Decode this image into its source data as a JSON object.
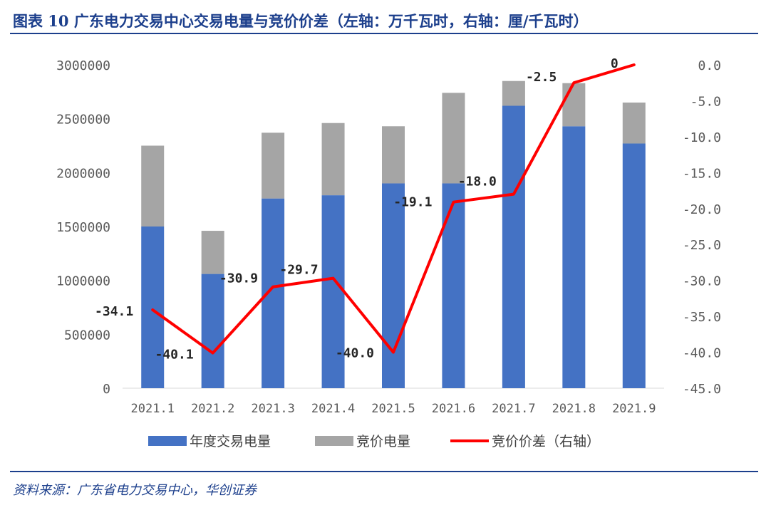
{
  "figure": {
    "title": "图表 10  广东电力交易中心交易电量与竞价价差（左轴：万千瓦时，右轴：厘/千瓦时）",
    "source": "资料来源：广东省电力交易中心，华创证券"
  },
  "colors": {
    "annual_bar": "#4472c4",
    "bid_bar": "#a5a5a5",
    "spread_line": "#ff0000",
    "heading": "#1c3f8c",
    "axis_text": "#595959"
  },
  "chart_data": {
    "type": "bar",
    "stacked": true,
    "categories": [
      "2021.1",
      "2021.2",
      "2021.3",
      "2021.4",
      "2021.5",
      "2021.6",
      "2021.7",
      "2021.8",
      "2021.9"
    ],
    "series": [
      {
        "name": "年度交易电量",
        "type": "bar",
        "axis": "left",
        "values": [
          1500000,
          1060000,
          1760000,
          1790000,
          1900000,
          1900000,
          2620000,
          2430000,
          2270000
        ]
      },
      {
        "name": "竞价电量",
        "type": "bar",
        "axis": "left",
        "values": [
          750000,
          400000,
          610000,
          670000,
          530000,
          840000,
          230000,
          400000,
          380000
        ]
      },
      {
        "name": "竞价价差（右轴）",
        "type": "line",
        "axis": "right",
        "values": [
          -34.1,
          -40.1,
          -30.9,
          -29.7,
          -40.0,
          -19.1,
          -18.0,
          -2.5,
          0
        ],
        "labels": [
          "-34.1",
          "-40.1",
          "-30.9",
          "-29.7",
          "-40.0",
          "-19.1",
          "-18.0",
          "-2.5",
          "0"
        ]
      }
    ],
    "y_left": {
      "min": 0,
      "max": 3000000,
      "ticks": [
        0,
        500000,
        1000000,
        1500000,
        2000000,
        2500000,
        3000000
      ],
      "tick_labels": [
        "0",
        "500000",
        "1000000",
        "1500000",
        "2000000",
        "2500000",
        "3000000"
      ]
    },
    "y_right": {
      "min": -45,
      "max": 0,
      "ticks": [
        0,
        -5,
        -10,
        -15,
        -20,
        -25,
        -30,
        -35,
        -40,
        -45
      ],
      "tick_labels": [
        "0.0",
        "-5.0",
        "-10.0",
        "-15.0",
        "-20.0",
        "-25.0",
        "-30.0",
        "-35.0",
        "-40.0",
        "-45.0"
      ]
    },
    "legend": {
      "position": "bottom"
    },
    "grid": false
  }
}
